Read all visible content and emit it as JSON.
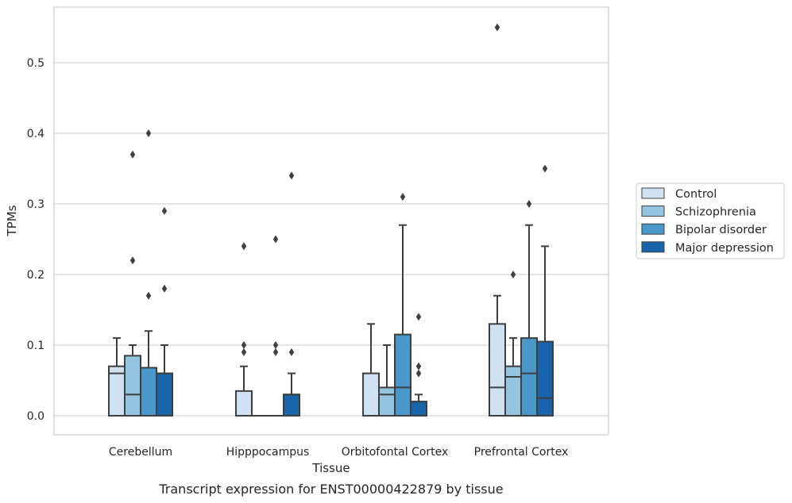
{
  "caption": "Transcript expression for ENST00000422879 by tissue",
  "chart_data": {
    "type": "boxplot",
    "title": "",
    "xlabel": "Tissue",
    "ylabel": "TPMs",
    "ylim": [
      -0.026,
      0.58
    ],
    "yticks": [
      0.0,
      0.1,
      0.2,
      0.3,
      0.4,
      0.5
    ],
    "ytick_labels": [
      "0.0",
      "0.1",
      "0.2",
      "0.3",
      "0.4",
      "0.5"
    ],
    "grid": "horizontal",
    "legend_position": "outside-right",
    "categories": [
      "Cerebellum",
      "Hipppocampus",
      "Orbitofontal Cortex",
      "Prefrontal Cortex"
    ],
    "series": [
      {
        "name": "Control",
        "color": "#d0e1f2",
        "boxes": [
          {
            "whisker_low": 0.0,
            "q1": 0.0,
            "median": 0.06,
            "q3": 0.07,
            "whisker_high": 0.11,
            "outliers": []
          },
          {
            "whisker_low": 0.0,
            "q1": 0.0,
            "median": 0.0,
            "q3": 0.035,
            "whisker_high": 0.07,
            "outliers": [
              0.09,
              0.1,
              0.24
            ]
          },
          {
            "whisker_low": 0.0,
            "q1": 0.0,
            "median": 0.0,
            "q3": 0.06,
            "whisker_high": 0.13,
            "outliers": []
          },
          {
            "whisker_low": 0.0,
            "q1": 0.0,
            "median": 0.04,
            "q3": 0.13,
            "whisker_high": 0.17,
            "outliers": [
              0.55
            ]
          }
        ]
      },
      {
        "name": "Schizophrenia",
        "color": "#94c4df",
        "boxes": [
          {
            "whisker_low": 0.0,
            "q1": 0.0,
            "median": 0.03,
            "q3": 0.085,
            "whisker_high": 0.1,
            "outliers": [
              0.22,
              0.37
            ]
          },
          {
            "whisker_low": 0.0,
            "q1": 0.0,
            "median": 0.0,
            "q3": 0.0,
            "whisker_high": 0.0,
            "outliers": []
          },
          {
            "whisker_low": 0.0,
            "q1": 0.0,
            "median": 0.03,
            "q3": 0.04,
            "whisker_high": 0.1,
            "outliers": []
          },
          {
            "whisker_low": 0.0,
            "q1": 0.0,
            "median": 0.055,
            "q3": 0.07,
            "whisker_high": 0.11,
            "outliers": [
              0.2
            ]
          }
        ]
      },
      {
        "name": "Bipolar disorder",
        "color": "#4a98c9",
        "boxes": [
          {
            "whisker_low": 0.0,
            "q1": 0.0,
            "median": 0.0,
            "q3": 0.068,
            "whisker_high": 0.12,
            "outliers": [
              0.17,
              0.4
            ]
          },
          {
            "whisker_low": 0.0,
            "q1": 0.0,
            "median": 0.0,
            "q3": 0.0,
            "whisker_high": 0.0,
            "outliers": [
              0.09,
              0.1,
              0.25
            ]
          },
          {
            "whisker_low": 0.0,
            "q1": 0.0,
            "median": 0.04,
            "q3": 0.115,
            "whisker_high": 0.27,
            "outliers": [
              0.31
            ]
          },
          {
            "whisker_low": 0.0,
            "q1": 0.0,
            "median": 0.06,
            "q3": 0.11,
            "whisker_high": 0.27,
            "outliers": [
              0.3
            ]
          }
        ]
      },
      {
        "name": "Major depression",
        "color": "#1764ab",
        "boxes": [
          {
            "whisker_low": 0.0,
            "q1": 0.0,
            "median": 0.06,
            "q3": 0.06,
            "whisker_high": 0.1,
            "outliers": [
              0.18,
              0.29
            ]
          },
          {
            "whisker_low": 0.0,
            "q1": 0.0,
            "median": 0.03,
            "q3": 0.03,
            "whisker_high": 0.06,
            "outliers": [
              0.09,
              0.34
            ]
          },
          {
            "whisker_low": 0.0,
            "q1": 0.0,
            "median": 0.02,
            "q3": 0.02,
            "whisker_high": 0.03,
            "outliers": [
              0.06,
              0.07,
              0.14
            ]
          },
          {
            "whisker_low": 0.0,
            "q1": 0.0,
            "median": 0.025,
            "q3": 0.105,
            "whisker_high": 0.24,
            "outliers": [
              0.35
            ]
          }
        ]
      }
    ]
  }
}
